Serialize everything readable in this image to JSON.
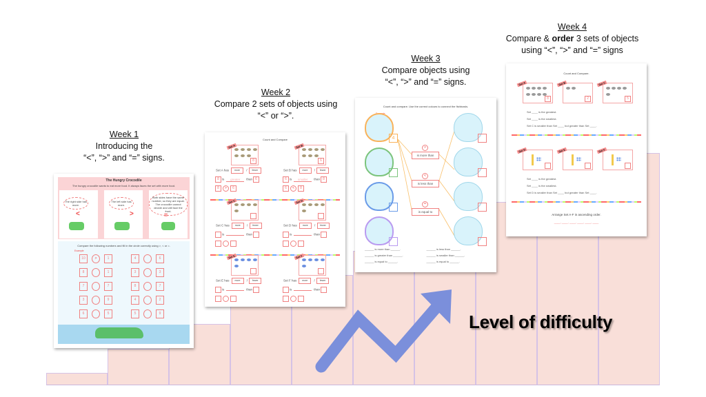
{
  "weeks": [
    {
      "heading": "Week 1",
      "lines": [
        "Introducing the",
        "“<”, “>” and “=” signs."
      ]
    },
    {
      "heading": "Week 2",
      "lines": [
        "Compare 2 sets of objects using",
        "“<” or “>”."
      ]
    },
    {
      "heading": "Week 3",
      "lines": [
        "Compare objects using",
        "“<”, “>” and “=” signs."
      ]
    },
    {
      "heading": "Week 4",
      "line1_pre": "Compare & ",
      "line1_bold": "order",
      "line1_post": " 3 sets of objects",
      "line2": "using “<”, “>” and “=” signs"
    }
  ],
  "difficulty_label": "Level of difficulty",
  "colors": {
    "bars": "#f9dfd9",
    "arrow": "#7b8fdb",
    "accent": "#f08080"
  },
  "sheet1": {
    "title": "The Hungry Crocodile",
    "intro": "The hungry crocodile wants to eat more food. It always faces the set with more food.",
    "bubbles": [
      "The right side has more.",
      "The left side has more.",
      "Both sides have the same number, so they are equal. The crocodile cannot decide and will face the front."
    ],
    "signs": [
      "<",
      ">",
      "="
    ],
    "instruction": "Compare the following numbers and fill in the circle correctly using >, < or =.",
    "example_label": "Example",
    "pairs": [
      [
        "10",
        ">",
        "1"
      ],
      [
        "4",
        "",
        "6"
      ],
      [
        "8",
        "",
        "1"
      ],
      [
        "3",
        "",
        "3"
      ],
      [
        "7",
        "",
        "7"
      ],
      [
        "8",
        "",
        "7"
      ],
      [
        "3",
        "",
        "9"
      ],
      [
        "4",
        "",
        "2"
      ],
      [
        "6",
        "",
        "5"
      ],
      [
        "5",
        "",
        "9"
      ]
    ]
  },
  "sheet2": {
    "title": "Count and Compare",
    "sets": [
      {
        "name": "Set A",
        "count": "8",
        "sentence": "Set A has",
        "more": "more",
        "fewer": "fewer",
        "is": "is",
        "word": "greater",
        "than": "than",
        "a": "8",
        "b": "6",
        "sign": ">"
      },
      {
        "name": "Set B",
        "count": "6",
        "sentence": "Set B has",
        "more": "more",
        "fewer": "fewer",
        "is": "is",
        "word": "smaller",
        "than": "than",
        "a": "6",
        "b": "8",
        "sign": "<"
      },
      {
        "name": "Set C",
        "count": "",
        "sentence": "Set C has",
        "more": "more",
        "fewer": "fewer",
        "is": "is",
        "word": "",
        "than": "than",
        "a": "",
        "b": "",
        "sign": ""
      },
      {
        "name": "Set D",
        "count": "",
        "sentence": "Set D has",
        "more": "more",
        "fewer": "fewer",
        "is": "is",
        "word": "",
        "than": "than",
        "a": "",
        "b": "",
        "sign": ""
      },
      {
        "name": "Set E",
        "count": "",
        "sentence": "Set E has",
        "more": "more",
        "fewer": "fewer",
        "is": "is",
        "word": "",
        "than": "than",
        "a": "",
        "b": "",
        "sign": ""
      },
      {
        "name": "Set F",
        "count": "",
        "sentence": "Set F has",
        "more": "more",
        "fewer": "fewer",
        "is": "is",
        "word": "",
        "than": "than",
        "a": "",
        "b": "",
        "sign": ""
      }
    ]
  },
  "sheet3": {
    "title": "Count and compare. Use the correct colours to connect the fishbowls.",
    "example_label": "Example",
    "example_count": "4",
    "relations": [
      {
        "sign": ">",
        "label": "is more than"
      },
      {
        "sign": "<",
        "label": "is less than"
      },
      {
        "sign": "=",
        "label": "is equal to"
      }
    ],
    "sentences": [
      "______ is more than ______.",
      "______ is less than ______.",
      "______ is greater than ______.",
      "______ is smaller than ______.",
      "______ is equal to ______.",
      "______ is equal to ______."
    ]
  },
  "sheet4": {
    "title": "Count and Compare.",
    "sets_top": [
      {
        "name": "Set A",
        "count": "8"
      },
      {
        "name": "Set B",
        "count": "2"
      },
      {
        "name": "Set C",
        "count": "5"
      }
    ],
    "sets_bottom": [
      {
        "name": "Set D"
      },
      {
        "name": "Set E"
      },
      {
        "name": "Set F"
      }
    ],
    "lines_top": [
      "Set ____ is the greatest.",
      "Set ____ is the smallest.",
      "Set C is smaller than Set ____ but greater than Set ____."
    ],
    "lines_bottom": [
      "Set ____ is the greatest.",
      "Set ____ is the smallest.",
      "Set D is smaller than Set ____ but greater than Set ____."
    ],
    "arrange": "Arrange Set A-F in ascending order.",
    "blanks": "____, ____, ____, ____, ____, ____"
  }
}
